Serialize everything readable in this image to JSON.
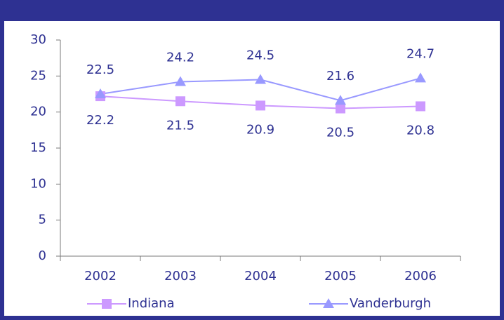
{
  "chart_data": {
    "type": "line",
    "categories": [
      "2002",
      "2003",
      "2004",
      "2005",
      "2006"
    ],
    "series": [
      {
        "name": "Indiana",
        "color": "#cc99ff",
        "marker": "square",
        "values": [
          22.2,
          21.5,
          20.9,
          20.5,
          20.8
        ]
      },
      {
        "name": "Vanderburgh",
        "color": "#9999ff",
        "marker": "triangle",
        "values": [
          22.5,
          24.2,
          24.5,
          21.6,
          24.7
        ]
      }
    ],
    "ylim": [
      0,
      30
    ],
    "yticks": [
      0,
      5,
      10,
      15,
      20,
      25,
      30
    ],
    "grid": false,
    "legend": "bottom"
  }
}
